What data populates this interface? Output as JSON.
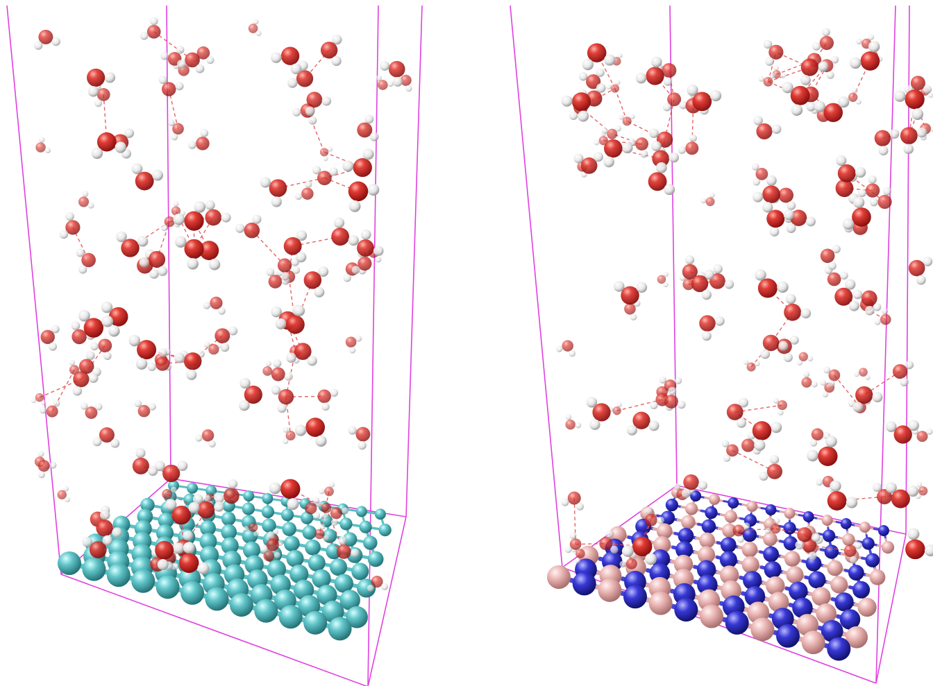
{
  "colors": {
    "background": "#ffffff",
    "box_edge": "#e040e0",
    "oxygen": "#d42a2a",
    "hydrogen": "#f0f0f0",
    "hbond": "#e04040",
    "graphene_carbon": "#5fc3c8",
    "boron": "#e8b0b0",
    "nitrogen": "#3a3ad8"
  },
  "panels": [
    {
      "id": "left",
      "sheet": "graphene",
      "sheet_colors": [
        "graphene_carbon",
        "graphene_carbon"
      ]
    },
    {
      "id": "right",
      "sheet": "hexagonal-boron-nitride",
      "sheet_colors": [
        "boron",
        "nitrogen"
      ]
    }
  ]
}
